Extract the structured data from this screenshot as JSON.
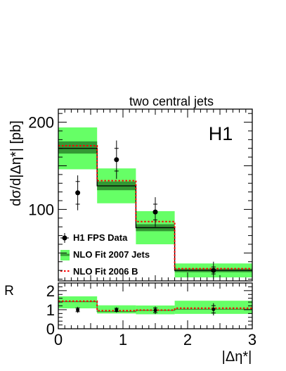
{
  "colors": {
    "band": "#66ff66",
    "inner_band": "#339933",
    "fit2006": "#ff0000",
    "data": "#000000"
  },
  "chart_data": [
    {
      "type": "histogram",
      "title": "two central jets",
      "ylabel": "dσ/d|Δη*| [pb]",
      "experiment_label": "H1",
      "xlim": [
        0,
        3
      ],
      "ylim": [
        18,
        215
      ],
      "y_ticks": [
        {
          "value": 100,
          "label": "100"
        },
        {
          "value": 200,
          "label": "200"
        }
      ],
      "bins": [
        [
          0,
          0.6
        ],
        [
          0.6,
          1.2
        ],
        [
          1.2,
          1.8
        ],
        [
          1.8,
          3.0
        ]
      ],
      "series": [
        {
          "name": "H1 FPS Data",
          "kind": "points",
          "x": [
            0.3,
            0.9,
            1.5,
            2.4
          ],
          "y": [
            119,
            157,
            97,
            30
          ],
          "stat_err": [
            13,
            13,
            9,
            4
          ],
          "total_err": [
            20,
            22,
            17,
            10
          ]
        },
        {
          "name": "NLO Fit 2007 Jets",
          "kind": "band",
          "central": [
            170,
            127,
            79,
            30
          ],
          "band_low": [
            146,
            107,
            60,
            22
          ],
          "band_high": [
            194,
            147,
            98,
            38
          ],
          "inner_low": [
            164,
            122,
            75,
            28
          ],
          "inner_high": [
            178,
            132,
            83,
            32
          ]
        },
        {
          "name": "NLO Fit 2006 B",
          "kind": "step",
          "values": [
            173,
            133,
            86,
            32
          ]
        }
      ],
      "legend": {
        "placement": "bottom-left"
      }
    },
    {
      "type": "ratio",
      "ylabel": "R",
      "xlabel": "|Δη*|",
      "xlim": [
        0,
        3
      ],
      "ylim": [
        0,
        2.4
      ],
      "y_ticks": [
        {
          "value": 0,
          "label": "0"
        },
        {
          "value": 1,
          "label": "1"
        },
        {
          "value": 2,
          "label": "2"
        }
      ],
      "x_ticks": [
        {
          "value": 0,
          "label": "0"
        },
        {
          "value": 1,
          "label": "1"
        },
        {
          "value": 2,
          "label": "2"
        },
        {
          "value": 3,
          "label": "3"
        }
      ],
      "points": {
        "x": [
          0.3,
          0.9,
          1.5,
          2.4
        ],
        "y": [
          0.99,
          0.99,
          0.97,
          1.02
        ],
        "err": [
          0.16,
          0.14,
          0.2,
          0.32
        ]
      },
      "band_low": [
        1.07,
        0.8,
        0.76,
        0.78
      ],
      "band_high": [
        1.7,
        1.23,
        1.22,
        1.47
      ],
      "central": [
        1.42,
        0.9,
        0.96,
        1.02
      ],
      "fit2006_values": [
        1.45,
        0.95,
        0.98,
        1.08
      ]
    }
  ]
}
